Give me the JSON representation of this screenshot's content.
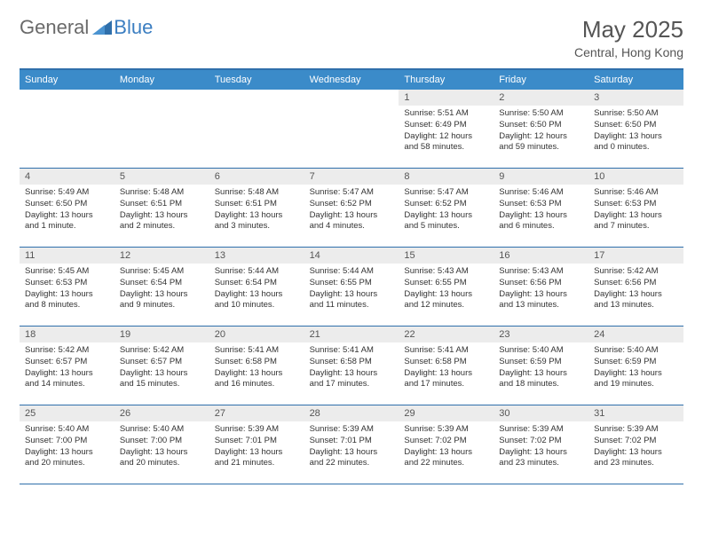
{
  "logo": {
    "part1": "General",
    "part2": "Blue"
  },
  "title": "May 2025",
  "location": "Central, Hong Kong",
  "colors": {
    "header_bar": "#3b8bc9",
    "header_border": "#2f6fab",
    "daynum_bg": "#ececec",
    "text": "#333333",
    "title_text": "#555555",
    "logo_gray": "#6a6a6a",
    "logo_blue": "#3b7ec1",
    "background": "#ffffff"
  },
  "day_names": [
    "Sunday",
    "Monday",
    "Tuesday",
    "Wednesday",
    "Thursday",
    "Friday",
    "Saturday"
  ],
  "weeks": [
    [
      {
        "num": "",
        "sunrise": "",
        "sunset": "",
        "daylight": ""
      },
      {
        "num": "",
        "sunrise": "",
        "sunset": "",
        "daylight": ""
      },
      {
        "num": "",
        "sunrise": "",
        "sunset": "",
        "daylight": ""
      },
      {
        "num": "",
        "sunrise": "",
        "sunset": "",
        "daylight": ""
      },
      {
        "num": "1",
        "sunrise": "Sunrise: 5:51 AM",
        "sunset": "Sunset: 6:49 PM",
        "daylight": "Daylight: 12 hours and 58 minutes."
      },
      {
        "num": "2",
        "sunrise": "Sunrise: 5:50 AM",
        "sunset": "Sunset: 6:50 PM",
        "daylight": "Daylight: 12 hours and 59 minutes."
      },
      {
        "num": "3",
        "sunrise": "Sunrise: 5:50 AM",
        "sunset": "Sunset: 6:50 PM",
        "daylight": "Daylight: 13 hours and 0 minutes."
      }
    ],
    [
      {
        "num": "4",
        "sunrise": "Sunrise: 5:49 AM",
        "sunset": "Sunset: 6:50 PM",
        "daylight": "Daylight: 13 hours and 1 minute."
      },
      {
        "num": "5",
        "sunrise": "Sunrise: 5:48 AM",
        "sunset": "Sunset: 6:51 PM",
        "daylight": "Daylight: 13 hours and 2 minutes."
      },
      {
        "num": "6",
        "sunrise": "Sunrise: 5:48 AM",
        "sunset": "Sunset: 6:51 PM",
        "daylight": "Daylight: 13 hours and 3 minutes."
      },
      {
        "num": "7",
        "sunrise": "Sunrise: 5:47 AM",
        "sunset": "Sunset: 6:52 PM",
        "daylight": "Daylight: 13 hours and 4 minutes."
      },
      {
        "num": "8",
        "sunrise": "Sunrise: 5:47 AM",
        "sunset": "Sunset: 6:52 PM",
        "daylight": "Daylight: 13 hours and 5 minutes."
      },
      {
        "num": "9",
        "sunrise": "Sunrise: 5:46 AM",
        "sunset": "Sunset: 6:53 PM",
        "daylight": "Daylight: 13 hours and 6 minutes."
      },
      {
        "num": "10",
        "sunrise": "Sunrise: 5:46 AM",
        "sunset": "Sunset: 6:53 PM",
        "daylight": "Daylight: 13 hours and 7 minutes."
      }
    ],
    [
      {
        "num": "11",
        "sunrise": "Sunrise: 5:45 AM",
        "sunset": "Sunset: 6:53 PM",
        "daylight": "Daylight: 13 hours and 8 minutes."
      },
      {
        "num": "12",
        "sunrise": "Sunrise: 5:45 AM",
        "sunset": "Sunset: 6:54 PM",
        "daylight": "Daylight: 13 hours and 9 minutes."
      },
      {
        "num": "13",
        "sunrise": "Sunrise: 5:44 AM",
        "sunset": "Sunset: 6:54 PM",
        "daylight": "Daylight: 13 hours and 10 minutes."
      },
      {
        "num": "14",
        "sunrise": "Sunrise: 5:44 AM",
        "sunset": "Sunset: 6:55 PM",
        "daylight": "Daylight: 13 hours and 11 minutes."
      },
      {
        "num": "15",
        "sunrise": "Sunrise: 5:43 AM",
        "sunset": "Sunset: 6:55 PM",
        "daylight": "Daylight: 13 hours and 12 minutes."
      },
      {
        "num": "16",
        "sunrise": "Sunrise: 5:43 AM",
        "sunset": "Sunset: 6:56 PM",
        "daylight": "Daylight: 13 hours and 13 minutes."
      },
      {
        "num": "17",
        "sunrise": "Sunrise: 5:42 AM",
        "sunset": "Sunset: 6:56 PM",
        "daylight": "Daylight: 13 hours and 13 minutes."
      }
    ],
    [
      {
        "num": "18",
        "sunrise": "Sunrise: 5:42 AM",
        "sunset": "Sunset: 6:57 PM",
        "daylight": "Daylight: 13 hours and 14 minutes."
      },
      {
        "num": "19",
        "sunrise": "Sunrise: 5:42 AM",
        "sunset": "Sunset: 6:57 PM",
        "daylight": "Daylight: 13 hours and 15 minutes."
      },
      {
        "num": "20",
        "sunrise": "Sunrise: 5:41 AM",
        "sunset": "Sunset: 6:58 PM",
        "daylight": "Daylight: 13 hours and 16 minutes."
      },
      {
        "num": "21",
        "sunrise": "Sunrise: 5:41 AM",
        "sunset": "Sunset: 6:58 PM",
        "daylight": "Daylight: 13 hours and 17 minutes."
      },
      {
        "num": "22",
        "sunrise": "Sunrise: 5:41 AM",
        "sunset": "Sunset: 6:58 PM",
        "daylight": "Daylight: 13 hours and 17 minutes."
      },
      {
        "num": "23",
        "sunrise": "Sunrise: 5:40 AM",
        "sunset": "Sunset: 6:59 PM",
        "daylight": "Daylight: 13 hours and 18 minutes."
      },
      {
        "num": "24",
        "sunrise": "Sunrise: 5:40 AM",
        "sunset": "Sunset: 6:59 PM",
        "daylight": "Daylight: 13 hours and 19 minutes."
      }
    ],
    [
      {
        "num": "25",
        "sunrise": "Sunrise: 5:40 AM",
        "sunset": "Sunset: 7:00 PM",
        "daylight": "Daylight: 13 hours and 20 minutes."
      },
      {
        "num": "26",
        "sunrise": "Sunrise: 5:40 AM",
        "sunset": "Sunset: 7:00 PM",
        "daylight": "Daylight: 13 hours and 20 minutes."
      },
      {
        "num": "27",
        "sunrise": "Sunrise: 5:39 AM",
        "sunset": "Sunset: 7:01 PM",
        "daylight": "Daylight: 13 hours and 21 minutes."
      },
      {
        "num": "28",
        "sunrise": "Sunrise: 5:39 AM",
        "sunset": "Sunset: 7:01 PM",
        "daylight": "Daylight: 13 hours and 22 minutes."
      },
      {
        "num": "29",
        "sunrise": "Sunrise: 5:39 AM",
        "sunset": "Sunset: 7:02 PM",
        "daylight": "Daylight: 13 hours and 22 minutes."
      },
      {
        "num": "30",
        "sunrise": "Sunrise: 5:39 AM",
        "sunset": "Sunset: 7:02 PM",
        "daylight": "Daylight: 13 hours and 23 minutes."
      },
      {
        "num": "31",
        "sunrise": "Sunrise: 5:39 AM",
        "sunset": "Sunset: 7:02 PM",
        "daylight": "Daylight: 13 hours and 23 minutes."
      }
    ]
  ]
}
